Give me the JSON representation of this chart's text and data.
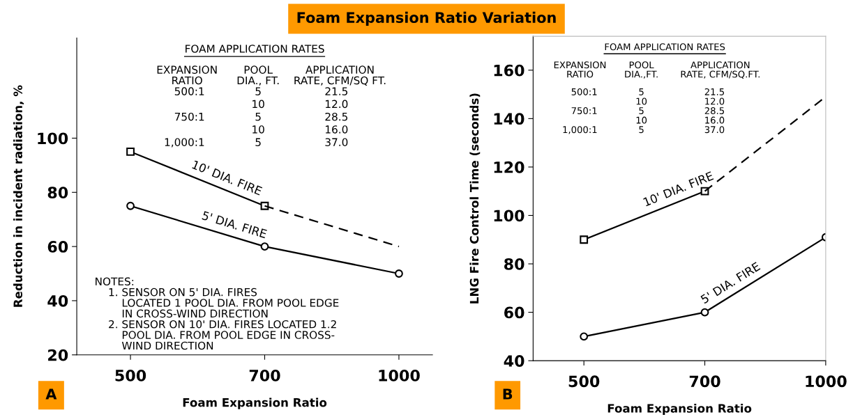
{
  "chart_data": [
    {
      "type": "line",
      "title": "Foam Expansion Ratio Variation",
      "subtitle": "A",
      "xlabel": "Foam Expansion Ratio",
      "ylabel": "Reduction in incident radiation, %",
      "categories": [
        "500",
        "700",
        "1000"
      ],
      "ylim": [
        20,
        137
      ],
      "yticks": [
        20,
        40,
        60,
        80,
        100
      ],
      "grid": false,
      "series": [
        {
          "name": "10' DIA. FIRE",
          "color": "#000000",
          "values": [
            95,
            75,
            null
          ],
          "marker": "square",
          "line_style": "solid"
        },
        {
          "color": "#000000",
          "values": [
            null,
            75,
            60
          ],
          "marker": "none",
          "line_style": "dashed"
        },
        {
          "name": "5' DIA. FIRE",
          "color": "#000000",
          "values": [
            75,
            60,
            50
          ],
          "marker": "circle",
          "line_style": "solid"
        }
      ],
      "annotations": [
        "FOAM APPLICATION RATES",
        "EXPANSION\nRATIO",
        "POOL\nDIA., FT.",
        "APPLICATION\nRATE, CFM/SQ FT.",
        "500:1\n\n750:1\n\n1,000:1",
        "5\n10\n5\n10\n5",
        "21.5\n12.0\n28.5\n16.0\n37.0",
        "NOTES:\n    1. SENSOR ON 5' DIA. FIRES\n        LOCATED 1 POOL DIA. FROM POOL EDGE\n        IN CROSS-WIND DIRECTION\n    2. SENSOR ON 10' DIA. FIRES LOCATED 1.2\n        POOL DIA. FROM POOL EDGE IN CROSS-\n        WIND DIRECTION"
      ]
    },
    {
      "type": "line",
      "subtitle": "B",
      "xlabel": "Foam Expansion Ratio",
      "ylabel": "LNG Fire Control Time (seconds)",
      "categories": [
        "500",
        "700",
        "1000"
      ],
      "ylim": [
        40,
        174
      ],
      "yticks": [
        40,
        60,
        80,
        100,
        120,
        140,
        160
      ],
      "grid": false,
      "series": [
        {
          "name": "10' DIA. FIRE",
          "color": "#000000",
          "values": [
            90,
            110,
            null
          ],
          "marker": "square",
          "line_style": "solid"
        },
        {
          "color": "#000000",
          "values": [
            null,
            110,
            149
          ],
          "marker": "none",
          "line_style": "dashed"
        },
        {
          "name": "5' DIA. FIRE",
          "color": "#000000",
          "values": [
            50,
            60,
            91
          ],
          "marker": "circle",
          "line_style": "solid"
        }
      ],
      "annotations": [
        "FOAM APPLICATION RATES",
        "EXPANSION\nRATIO",
        "POOL\nDIA.,FT.",
        "APPLICATION\nRATE, CFM/SQ.FT.",
        "500:1\n\n750:1\n\n1,000:1",
        "5\n10\n5\n10\n5",
        "21.5\n12.0\n28.5\n16.0\n37.0"
      ]
    }
  ]
}
